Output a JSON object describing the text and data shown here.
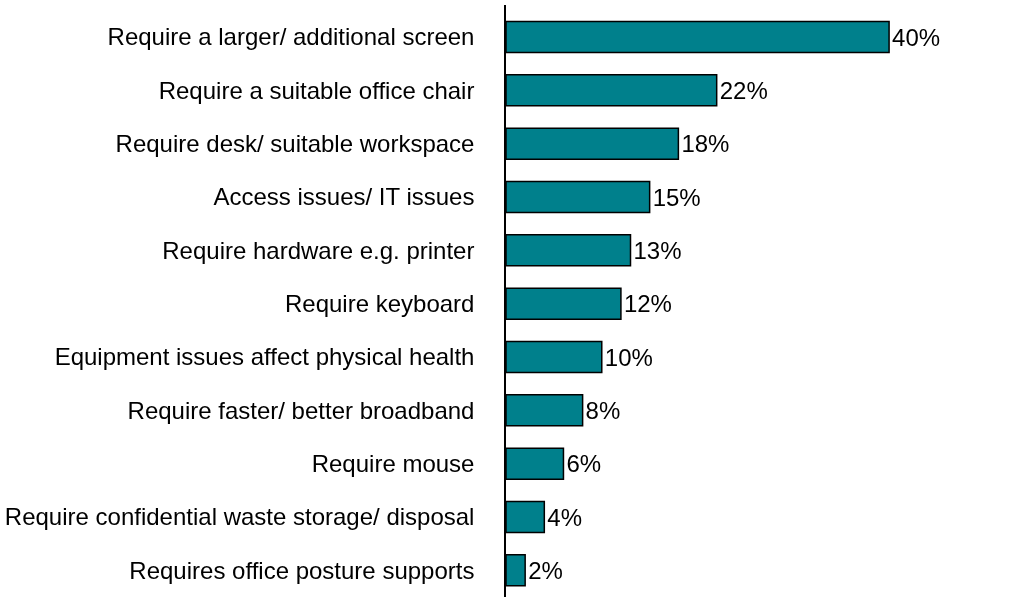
{
  "chart_data": {
    "type": "bar",
    "orientation": "horizontal",
    "categories": [
      "Require a larger/ additional screen",
      "Require a suitable office chair",
      "Require desk/ suitable workspace",
      "Access issues/ IT issues",
      "Require hardware e.g. printer",
      "Require keyboard",
      "Equipment issues affect physical health",
      "Require faster/ better broadband",
      "Require mouse",
      "Require confidential waste storage/ disposal",
      "Requires office posture supports"
    ],
    "values": [
      40,
      22,
      18,
      15,
      13,
      12,
      10,
      8,
      6,
      4,
      2
    ],
    "value_labels": [
      "40%",
      "22%",
      "18%",
      "15%",
      "13%",
      "12%",
      "10%",
      "8%",
      "6%",
      "4%",
      "2%"
    ],
    "color": "#00808c"
  }
}
